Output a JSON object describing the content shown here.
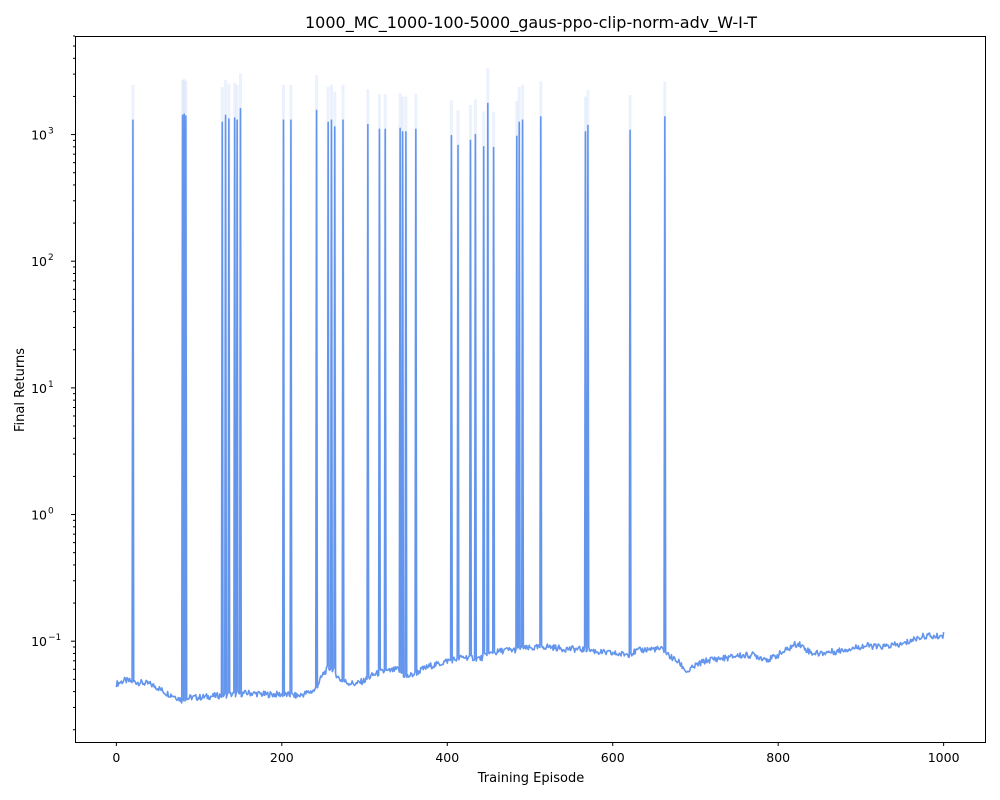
{
  "chart_data": {
    "type": "line",
    "title": "1000_MC_1000-100-5000_gaus-ppo-clip-norm-adv_W-I-T",
    "xlabel": "Training Episode",
    "ylabel": "Final Returns",
    "xlim": [
      -50,
      1050
    ],
    "ylim": [
      0.016,
      6000
    ],
    "yscale": "log",
    "grid": false,
    "legend": "none",
    "x_ticks": [
      0,
      200,
      400,
      600,
      800,
      1000
    ],
    "x_tick_labels": [
      "0",
      "200",
      "400",
      "600",
      "800",
      "1000"
    ],
    "y_ticks": [
      0.1,
      1,
      10,
      100,
      1000
    ],
    "y_tick_labels": [
      {
        "base": "10",
        "exp": "−1"
      },
      {
        "base": "10",
        "exp": "0"
      },
      {
        "base": "10",
        "exp": "1"
      },
      {
        "base": "10",
        "exp": "2"
      },
      {
        "base": "10",
        "exp": "3"
      }
    ],
    "series": [
      {
        "color": "#6495ed",
        "baseline": [
          [
            0,
            0.046
          ],
          [
            10,
            0.049
          ],
          [
            20,
            0.048
          ],
          [
            30,
            0.047
          ],
          [
            40,
            0.046
          ],
          [
            50,
            0.043
          ],
          [
            60,
            0.039
          ],
          [
            70,
            0.037
          ],
          [
            80,
            0.034
          ],
          [
            90,
            0.036
          ],
          [
            100,
            0.036
          ],
          [
            120,
            0.037
          ],
          [
            140,
            0.038
          ],
          [
            160,
            0.039
          ],
          [
            180,
            0.038
          ],
          [
            200,
            0.038
          ],
          [
            220,
            0.037
          ],
          [
            240,
            0.041
          ],
          [
            250,
            0.055
          ],
          [
            255,
            0.06
          ],
          [
            260,
            0.062
          ],
          [
            270,
            0.05
          ],
          [
            280,
            0.047
          ],
          [
            290,
            0.046
          ],
          [
            300,
            0.049
          ],
          [
            310,
            0.054
          ],
          [
            320,
            0.057
          ],
          [
            330,
            0.058
          ],
          [
            340,
            0.06
          ],
          [
            350,
            0.052
          ],
          [
            360,
            0.055
          ],
          [
            370,
            0.06
          ],
          [
            380,
            0.064
          ],
          [
            390,
            0.066
          ],
          [
            400,
            0.07
          ],
          [
            410,
            0.072
          ],
          [
            420,
            0.075
          ],
          [
            430,
            0.074
          ],
          [
            440,
            0.073
          ],
          [
            450,
            0.079
          ],
          [
            460,
            0.082
          ],
          [
            470,
            0.085
          ],
          [
            480,
            0.085
          ],
          [
            490,
            0.087
          ],
          [
            500,
            0.088
          ],
          [
            510,
            0.089
          ],
          [
            520,
            0.091
          ],
          [
            530,
            0.089
          ],
          [
            540,
            0.087
          ],
          [
            550,
            0.087
          ],
          [
            560,
            0.086
          ],
          [
            570,
            0.086
          ],
          [
            580,
            0.083
          ],
          [
            590,
            0.081
          ],
          [
            600,
            0.08
          ],
          [
            610,
            0.079
          ],
          [
            620,
            0.079
          ],
          [
            630,
            0.084
          ],
          [
            640,
            0.086
          ],
          [
            650,
            0.087
          ],
          [
            660,
            0.086
          ],
          [
            670,
            0.075
          ],
          [
            680,
            0.068
          ],
          [
            690,
            0.057
          ],
          [
            700,
            0.064
          ],
          [
            710,
            0.069
          ],
          [
            720,
            0.072
          ],
          [
            730,
            0.073
          ],
          [
            740,
            0.074
          ],
          [
            750,
            0.077
          ],
          [
            760,
            0.077
          ],
          [
            770,
            0.078
          ],
          [
            780,
            0.074
          ],
          [
            790,
            0.072
          ],
          [
            800,
            0.078
          ],
          [
            810,
            0.085
          ],
          [
            820,
            0.094
          ],
          [
            825,
            0.096
          ],
          [
            830,
            0.09
          ],
          [
            840,
            0.081
          ],
          [
            850,
            0.08
          ],
          [
            860,
            0.082
          ],
          [
            870,
            0.083
          ],
          [
            880,
            0.086
          ],
          [
            890,
            0.088
          ],
          [
            900,
            0.091
          ],
          [
            910,
            0.092
          ],
          [
            920,
            0.09
          ],
          [
            930,
            0.091
          ],
          [
            940,
            0.093
          ],
          [
            950,
            0.094
          ],
          [
            960,
            0.101
          ],
          [
            970,
            0.107
          ],
          [
            980,
            0.111
          ],
          [
            990,
            0.108
          ],
          [
            1000,
            0.112
          ]
        ],
        "spikes": [
          [
            20,
            1300
          ],
          [
            80,
            1420
          ],
          [
            82,
            1450
          ],
          [
            84,
            1400
          ],
          [
            128,
            1250
          ],
          [
            132,
            1420
          ],
          [
            136,
            1330
          ],
          [
            143,
            1350
          ],
          [
            146,
            1300
          ],
          [
            150,
            1600
          ],
          [
            202,
            1300
          ],
          [
            211,
            1300
          ],
          [
            242,
            1550
          ],
          [
            256,
            1250
          ],
          [
            260,
            1300
          ],
          [
            264,
            1150
          ],
          [
            274,
            1300
          ],
          [
            304,
            1200
          ],
          [
            318,
            1100
          ],
          [
            325,
            1100
          ],
          [
            343,
            1120
          ],
          [
            346,
            1050
          ],
          [
            350,
            1050
          ],
          [
            362,
            1100
          ],
          [
            405,
            980
          ],
          [
            413,
            820
          ],
          [
            428,
            900
          ],
          [
            434,
            1000
          ],
          [
            444,
            800
          ],
          [
            449,
            1760
          ],
          [
            456,
            790
          ],
          [
            484,
            970
          ],
          [
            487,
            1250
          ],
          [
            491,
            1300
          ],
          [
            513,
            1380
          ],
          [
            567,
            1050
          ],
          [
            570,
            1180
          ],
          [
            621,
            1080
          ],
          [
            663,
            1380
          ]
        ]
      }
    ]
  }
}
